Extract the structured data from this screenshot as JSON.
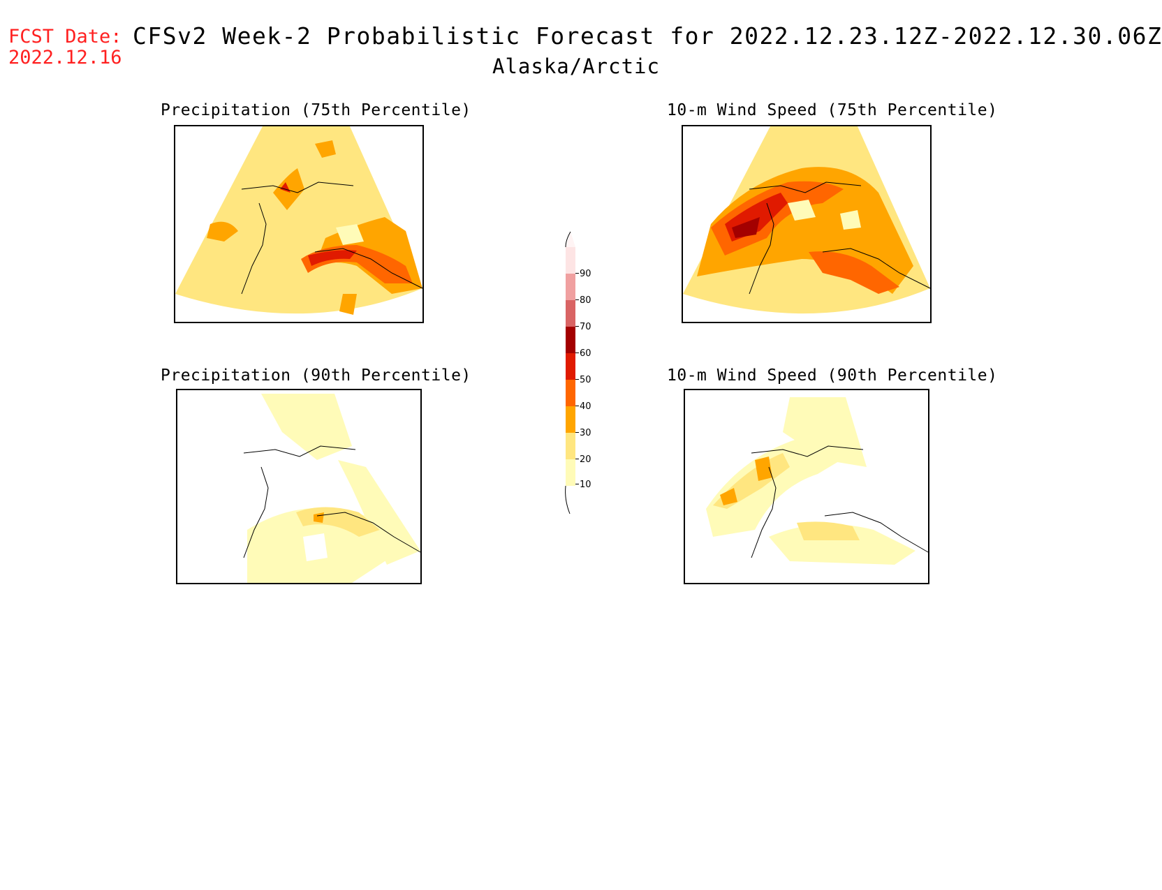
{
  "header": {
    "fcst_label": "FCST Date:",
    "fcst_date": "2022.12.16",
    "title": "CFSv2 Week-2 Probabilistic Forecast for 2022.12.23.12Z-2022.12.30.06Z",
    "subtitle": "Alaska/Arctic"
  },
  "panels": [
    {
      "title": "Precipitation (75th Percentile)",
      "intensity": "high-south"
    },
    {
      "title": "10-m Wind Speed (75th Percentile)",
      "intensity": "high-west"
    },
    {
      "title": "Precipitation (90th Percentile)",
      "intensity": "low"
    },
    {
      "title": "10-m Wind Speed (90th Percentile)",
      "intensity": "low-west"
    }
  ],
  "colorbar": {
    "levels": [
      "10",
      "20",
      "30",
      "40",
      "50",
      "60",
      "70",
      "80",
      "90"
    ],
    "colors": [
      "#fffbb8",
      "#ffe680",
      "#ffa500",
      "#ff6600",
      "#e01a00",
      "#a30000",
      "#d96464",
      "#f0a0a0",
      "#fde4e4"
    ]
  }
}
